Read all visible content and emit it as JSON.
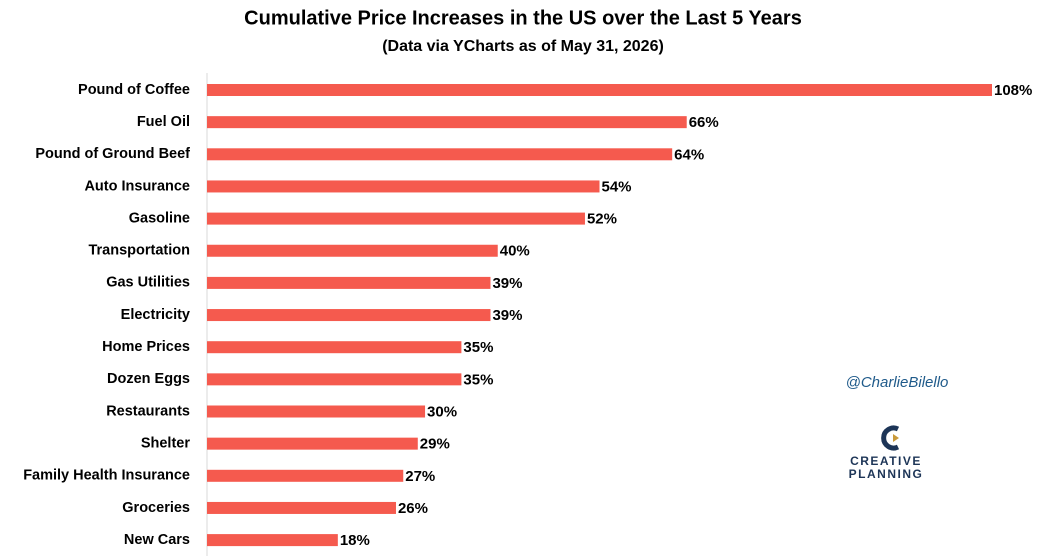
{
  "chart_data": {
    "type": "bar",
    "orientation": "horizontal",
    "title": "Cumulative Price Increases in the US over the Last 5 Years",
    "subtitle": "(Data via YCharts as of May 31, 2026)",
    "categories": [
      "Pound of Coffee",
      "Fuel Oil",
      "Pound of Ground Beef",
      "Auto Insurance",
      "Gasoline",
      "Transportation",
      "Gas Utilities",
      "Electricity",
      "Home Prices",
      "Dozen Eggs",
      "Restaurants",
      "Shelter",
      "Family Health Insurance",
      "Groceries",
      "New Cars"
    ],
    "values": [
      108,
      66,
      64,
      54,
      52,
      40,
      39,
      39,
      35,
      35,
      30,
      29,
      27,
      26,
      18
    ],
    "value_labels": [
      "108%",
      "66%",
      "64%",
      "54%",
      "52%",
      "40%",
      "39%",
      "39%",
      "35%",
      "35%",
      "30%",
      "29%",
      "27%",
      "26%",
      "18%"
    ],
    "color": "#f55a4e",
    "annotations": [
      "@CharlieBilello",
      "CREATIVE",
      "PLANNING"
    ]
  }
}
